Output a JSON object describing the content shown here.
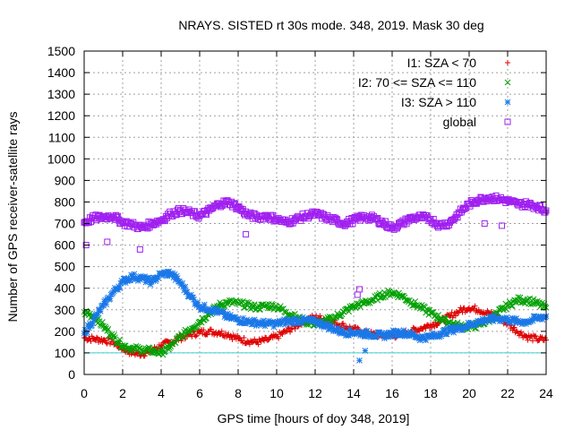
{
  "chart_data": {
    "type": "scatter",
    "title": "NRAYS. SISTED rt 30s mode. 348, 2019. Mask 30 deg",
    "xlabel": "GPS time [hours of doy 348, 2019]",
    "ylabel": "Number of GPS receiver-satellite rays",
    "xlim": [
      0,
      24
    ],
    "ylim": [
      0,
      1500
    ],
    "xticks": [
      0,
      2,
      4,
      6,
      8,
      10,
      12,
      14,
      16,
      18,
      20,
      22,
      24
    ],
    "yticks": [
      0,
      100,
      200,
      300,
      400,
      500,
      600,
      700,
      800,
      900,
      1000,
      1100,
      1200,
      1300,
      1400,
      1500
    ],
    "grid": true,
    "legend_position": "top-right",
    "reference_line": {
      "y": 100,
      "color": "#40d0d0"
    },
    "series": [
      {
        "name": "I1: SZA < 70",
        "marker": "+",
        "color": "#e00000",
        "x": [
          0,
          0.5,
          1,
          1.5,
          2,
          2.5,
          3,
          3.5,
          4,
          4.5,
          5,
          5.5,
          6,
          6.5,
          7,
          7.5,
          8,
          8.5,
          9,
          9.5,
          10,
          10.5,
          11,
          11.5,
          12,
          12.5,
          13,
          13.5,
          14,
          14.5,
          15,
          15.5,
          16,
          16.5,
          17,
          17.5,
          18,
          18.5,
          19,
          19.5,
          20,
          20.5,
          21,
          21.5,
          22,
          22.5,
          23,
          23.5,
          24
        ],
        "y": [
          170,
          165,
          160,
          150,
          120,
          100,
          95,
          110,
          135,
          150,
          170,
          185,
          195,
          200,
          195,
          185,
          165,
          155,
          150,
          160,
          175,
          200,
          225,
          255,
          265,
          255,
          240,
          225,
          210,
          195,
          185,
          180,
          180,
          185,
          200,
          215,
          230,
          245,
          270,
          295,
          310,
          300,
          285,
          265,
          235,
          200,
          175,
          165,
          160
        ]
      },
      {
        "name": "I2: 70 <= SZA <= 110",
        "marker": "x",
        "color": "#00a000",
        "x": [
          0,
          0.5,
          1,
          1.5,
          2,
          2.5,
          3,
          3.5,
          4,
          4.5,
          5,
          5.5,
          6,
          6.5,
          7,
          7.5,
          8,
          8.5,
          9,
          9.5,
          10,
          10.5,
          11,
          11.5,
          12,
          12.5,
          13,
          13.5,
          14,
          14.5,
          15,
          15.5,
          16,
          16.5,
          17,
          17.5,
          18,
          18.5,
          19,
          19.5,
          20,
          20.5,
          21,
          21.5,
          22,
          22.5,
          23,
          23.5,
          24
        ],
        "y": [
          290,
          270,
          225,
          175,
          135,
          120,
          115,
          110,
          100,
          130,
          175,
          210,
          245,
          285,
          320,
          335,
          330,
          320,
          310,
          320,
          315,
          290,
          265,
          245,
          235,
          245,
          265,
          290,
          315,
          330,
          345,
          370,
          380,
          365,
          335,
          310,
          285,
          260,
          240,
          225,
          220,
          230,
          250,
          285,
          320,
          345,
          345,
          330,
          310
        ]
      },
      {
        "name": "I3: SZA > 110",
        "marker": "*",
        "color": "#1a78e8",
        "x": [
          0,
          0.5,
          1,
          1.5,
          2,
          2.5,
          3,
          3.5,
          4,
          4.5,
          5,
          5.5,
          6,
          6.5,
          7,
          7.5,
          8,
          8.5,
          9,
          9.5,
          10,
          10.5,
          11,
          11.5,
          12,
          12.5,
          13,
          13.5,
          14,
          14.5,
          15,
          15.5,
          16,
          16.5,
          17,
          17.5,
          18,
          18.5,
          19,
          19.5,
          20,
          20.5,
          21,
          21.5,
          22,
          22.5,
          23,
          23.5,
          24
        ],
        "y": [
          190,
          255,
          320,
          380,
          430,
          455,
          445,
          430,
          465,
          470,
          425,
          365,
          315,
          305,
          290,
          265,
          255,
          245,
          240,
          235,
          235,
          245,
          250,
          250,
          245,
          230,
          210,
          195,
          195,
          190,
          185,
          180,
          190,
          195,
          185,
          170,
          175,
          190,
          205,
          215,
          230,
          245,
          255,
          260,
          255,
          245,
          245,
          260,
          270
        ],
        "outliers": [
          [
            14.3,
            65
          ],
          [
            14.6,
            110
          ]
        ]
      },
      {
        "name": "global",
        "marker": "square",
        "color": "#a020f0",
        "x": [
          0,
          0.5,
          1,
          1.5,
          2,
          2.5,
          3,
          3.5,
          4,
          4.5,
          5,
          5.5,
          6,
          6.5,
          7,
          7.5,
          8,
          8.5,
          9,
          9.5,
          10,
          10.5,
          11,
          11.5,
          12,
          12.5,
          13,
          13.5,
          14,
          14.5,
          15,
          15.5,
          16,
          16.5,
          17,
          17.5,
          18,
          18.5,
          19,
          19.5,
          20,
          20.5,
          21,
          21.5,
          22,
          22.5,
          23,
          23.5,
          24
        ],
        "y": [
          705,
          725,
          730,
          735,
          705,
          695,
          680,
          700,
          715,
          745,
          760,
          750,
          735,
          760,
          790,
          800,
          775,
          740,
          730,
          735,
          720,
          705,
          720,
          735,
          745,
          730,
          715,
          700,
          715,
          730,
          725,
          705,
          680,
          700,
          725,
          730,
          720,
          690,
          705,
          750,
          790,
          810,
          820,
          815,
          805,
          790,
          790,
          780,
          760
        ],
        "outliers": [
          [
            0.1,
            600
          ],
          [
            1.2,
            615
          ],
          [
            2.9,
            580
          ],
          [
            14.3,
            395
          ],
          [
            14.2,
            370
          ],
          [
            8.4,
            650
          ],
          [
            20.8,
            700
          ],
          [
            21.7,
            690
          ]
        ]
      }
    ]
  }
}
